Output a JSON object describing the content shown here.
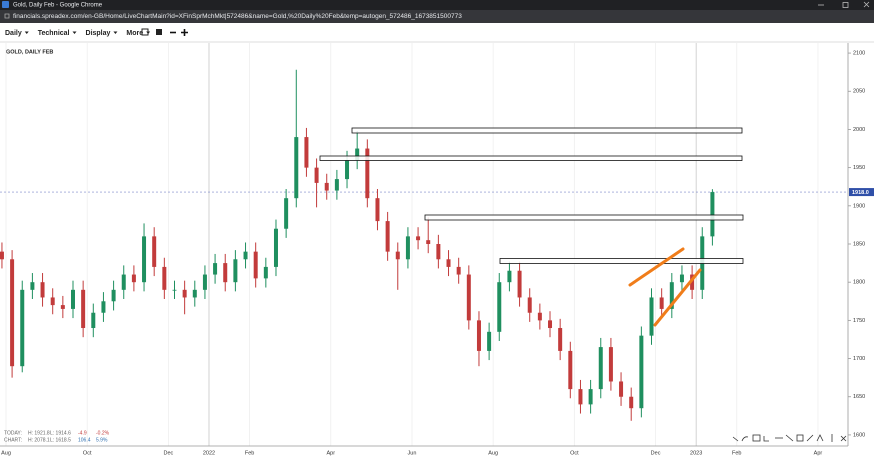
{
  "window": {
    "title": "Gold, Daily Feb - Google Chrome",
    "url": "financials.spreadex.com/en-GB/Home/LiveChartMain?id=XFinSprMchMkt|572486&name=Gold,%20Daily%20Feb&temp=autogen_572486_1673851500773"
  },
  "toolbar": {
    "menus": [
      "Daily",
      "Technical",
      "Display",
      "More"
    ]
  },
  "info": {
    "today": [
      "TODAY:",
      "H: 1921.8",
      "L: 1914.6",
      "-4.9",
      "-0.2%"
    ],
    "chart": [
      "CHART:",
      "H: 2078.1",
      "L: 1618.5",
      "106.4",
      "5.9%"
    ]
  },
  "chart_data": {
    "type": "candlestick",
    "title": "GOLD, DAILY FEB",
    "x": [
      -0.1,
      0.15,
      0.4,
      0.65,
      0.9,
      1.15,
      1.4,
      1.65,
      1.9,
      2.15,
      2.4,
      2.65,
      2.9,
      3.15,
      3.4,
      3.65,
      3.9,
      4.15,
      4.4,
      4.65,
      4.9,
      5.15,
      5.4,
      5.65,
      5.9,
      6.15,
      6.4,
      6.65,
      6.9,
      7.15,
      7.4,
      7.65,
      7.9,
      8.15,
      8.4,
      8.65,
      8.9,
      9.15,
      9.4,
      9.65,
      9.9,
      10.15,
      10.4,
      10.65,
      10.9,
      11.15,
      11.4,
      11.65,
      11.9,
      12.15,
      12.4,
      12.65,
      12.9,
      13.15,
      13.4,
      13.65,
      13.9,
      14.15,
      14.4,
      14.65,
      14.9,
      15.15,
      15.4,
      15.65,
      15.9,
      16.15,
      16.4,
      16.65,
      16.9,
      17.15,
      17.4
    ],
    "series": [
      {
        "open": [
          1840,
          1830,
          1690,
          1790,
          1800,
          1780,
          1770,
          1765,
          1790,
          1740,
          1760,
          1775,
          1790,
          1810,
          1800,
          1860,
          1820,
          1790,
          1790,
          1780,
          1790,
          1810,
          1825,
          1800,
          1830,
          1840,
          1805,
          1820,
          1870,
          1910,
          1990,
          1950,
          1930,
          1920,
          1935,
          1960,
          1975,
          1910,
          1880,
          1840,
          1830,
          1860,
          1855,
          1850,
          1830,
          1820,
          1810,
          1750,
          1710,
          1735,
          1800,
          1815,
          1780,
          1760,
          1750,
          1740,
          1710,
          1660,
          1640,
          1660,
          1715,
          1670,
          1650,
          1635,
          1730,
          1780,
          1765,
          1800,
          1810,
          1790,
          1860
        ],
        "high": [
          1852,
          1842,
          1802,
          1812,
          1812,
          1792,
          1782,
          1802,
          1802,
          1772,
          1787,
          1802,
          1822,
          1822,
          1877,
          1872,
          1832,
          1802,
          1802,
          1802,
          1822,
          1837,
          1837,
          1842,
          1852,
          1852,
          1832,
          1882,
          1922,
          2078.1,
          2002,
          1962,
          1942,
          1947,
          1972,
          1998,
          1987,
          1922,
          1892,
          1852,
          1872,
          1872,
          1885,
          1862,
          1842,
          1832,
          1822,
          1762,
          1747,
          1812,
          1827,
          1827,
          1792,
          1772,
          1762,
          1752,
          1722,
          1672,
          1672,
          1727,
          1727,
          1682,
          1662,
          1742,
          1792,
          1792,
          1812,
          1822,
          1822,
          1872,
          1921.8
        ],
        "low": [
          1818,
          1675,
          1682,
          1778,
          1768,
          1758,
          1753,
          1753,
          1728,
          1728,
          1748,
          1763,
          1778,
          1788,
          1788,
          1808,
          1778,
          1778,
          1758,
          1768,
          1778,
          1798,
          1788,
          1788,
          1818,
          1793,
          1793,
          1808,
          1858,
          1898,
          1938,
          1898,
          1908,
          1908,
          1923,
          1948,
          1898,
          1868,
          1828,
          1790,
          1818,
          1843,
          1838,
          1818,
          1808,
          1798,
          1738,
          1690,
          1698,
          1723,
          1788,
          1768,
          1748,
          1738,
          1728,
          1698,
          1648,
          1628,
          1628,
          1648,
          1658,
          1638,
          1618.5,
          1623,
          1718,
          1753,
          1753,
          1788,
          1778,
          1778,
          1848
        ],
        "close": [
          1830,
          1690,
          1790,
          1800,
          1780,
          1770,
          1765,
          1790,
          1740,
          1760,
          1775,
          1790,
          1810,
          1800,
          1860,
          1820,
          1790,
          1790,
          1780,
          1790,
          1810,
          1825,
          1800,
          1830,
          1840,
          1805,
          1820,
          1870,
          1910,
          1990,
          1950,
          1930,
          1920,
          1935,
          1960,
          1975,
          1910,
          1880,
          1840,
          1830,
          1860,
          1855,
          1850,
          1830,
          1820,
          1810,
          1750,
          1710,
          1735,
          1800,
          1815,
          1780,
          1760,
          1750,
          1740,
          1710,
          1660,
          1640,
          1660,
          1715,
          1670,
          1650,
          1635,
          1730,
          1780,
          1765,
          1800,
          1810,
          1790,
          1860,
          1918
        ]
      }
    ],
    "up_color": "#1f8f5f",
    "down_color": "#c23b3b",
    "xlim": [
      -0.148,
      20.74
    ],
    "xticks": [
      {
        "value": 0,
        "label": "Aug"
      },
      {
        "value": 2,
        "label": "Oct"
      },
      {
        "value": 4,
        "label": "Dec"
      },
      {
        "value": 5,
        "label": "2022"
      },
      {
        "value": 6,
        "label": "Feb"
      },
      {
        "value": 8,
        "label": "Apr"
      },
      {
        "value": 10,
        "label": "Jun"
      },
      {
        "value": 12,
        "label": "Aug"
      },
      {
        "value": 14,
        "label": "Oct"
      },
      {
        "value": 16,
        "label": "Dec"
      },
      {
        "value": 17,
        "label": "2023"
      },
      {
        "value": 18,
        "label": "Feb"
      },
      {
        "value": 20,
        "label": "Apr"
      }
    ],
    "ylim": [
      1585.5,
      2113.2
    ],
    "yticks": [
      1600,
      1650,
      1700,
      1750,
      1800,
      1850,
      1900,
      1950,
      2000,
      2050,
      2100
    ],
    "price_line": {
      "value": 1918,
      "label": "1918.0"
    },
    "grid": true
  }
}
